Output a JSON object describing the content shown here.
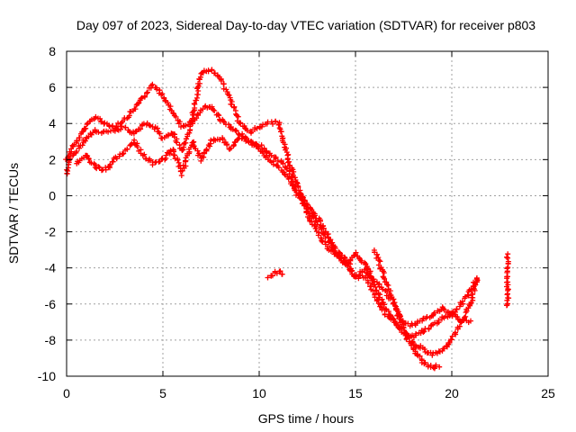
{
  "chart_data": {
    "type": "scatter",
    "title": "Day 097 of 2023, Sidereal Day-to-day VTEC variation (SDTVAR) for receiver p803",
    "xlabel": "GPS time / hours",
    "ylabel": "SDTVAR / TECUs",
    "xlim": [
      0,
      25
    ],
    "ylim": [
      -10,
      8
    ],
    "x_ticks": [
      0,
      5,
      10,
      15,
      20,
      25
    ],
    "y_ticks": [
      -10,
      -8,
      -6,
      -4,
      -2,
      0,
      2,
      4,
      6,
      8
    ],
    "grid": true,
    "marker": "+",
    "series": [
      {
        "name": "SDTVAR",
        "color": "#ff0000",
        "tracks": [
          {
            "x": [
              0.0,
              0.2,
              0.5,
              1.0,
              1.5,
              2.0,
              2.5,
              3.0,
              3.5,
              4.0,
              4.5,
              5.0,
              5.5,
              6.0,
              6.5,
              7.0,
              7.5,
              8.0,
              8.5,
              9.0,
              9.5,
              10.0,
              10.5,
              11.0,
              11.5,
              12.0,
              12.5,
              13.0,
              13.5,
              14.0,
              14.5,
              15.0,
              15.5,
              16.0,
              16.5,
              17.0,
              17.5,
              18.0,
              18.5,
              19.0,
              19.5,
              20.0,
              20.5,
              21.0,
              21.3
            ],
            "y": [
              1.2,
              2.5,
              3.0,
              3.8,
              4.4,
              4.0,
              3.8,
              4.2,
              4.8,
              5.5,
              6.1,
              5.6,
              4.6,
              3.8,
              4.2,
              6.8,
              7.0,
              6.5,
              5.3,
              4.0,
              3.5,
              3.8,
              4.0,
              4.1,
              2.0,
              0.5,
              -1.0,
              -2.0,
              -2.8,
              -3.3,
              -3.8,
              -4.5,
              -4.5,
              -5.5,
              -6.5,
              -7.0,
              -7.5,
              -8.2,
              -8.5,
              -8.8,
              -8.6,
              -8.0,
              -7.0,
              -6.0,
              -4.6
            ]
          },
          {
            "x": [
              0.0,
              0.5,
              1.0,
              1.5,
              2.0,
              2.5,
              3.0,
              3.5,
              4.0,
              4.5,
              5.0,
              5.5,
              6.0,
              6.5,
              7.0,
              7.5,
              8.0,
              8.5,
              9.0,
              9.5,
              10.0,
              10.5,
              11.0,
              11.5,
              12.0,
              12.5,
              13.0,
              13.5,
              14.0,
              14.5,
              15.0,
              15.5,
              16.0,
              16.5,
              17.0,
              17.5,
              18.0,
              18.5,
              19.0,
              19.5,
              20.0,
              20.5,
              21.0
            ],
            "y": [
              2.0,
              2.4,
              3.2,
              3.6,
              3.5,
              3.6,
              3.8,
              3.4,
              4.0,
              3.9,
              3.2,
              3.5,
              2.5,
              4.0,
              4.8,
              5.0,
              4.2,
              3.8,
              3.4,
              3.0,
              2.8,
              2.3,
              2.0,
              1.5,
              0.0,
              -0.8,
              -1.5,
              -2.3,
              -3.0,
              -3.5,
              -4.5,
              -4.0,
              -5.0,
              -6.2,
              -7.0,
              -7.6,
              -7.8,
              -7.5,
              -7.2,
              -6.8,
              -6.5,
              -6.9,
              -7.0
            ]
          },
          {
            "x": [
              0.5,
              1.0,
              1.5,
              2.0,
              2.5,
              3.0,
              3.5,
              4.0,
              4.5,
              5.0,
              5.5,
              6.0,
              6.5,
              7.0,
              7.5,
              8.0,
              8.5,
              9.0,
              9.5,
              10.0,
              10.5,
              11.0,
              11.5,
              12.0,
              12.5,
              13.0,
              13.5,
              14.0,
              14.5,
              15.0,
              15.5,
              16.0,
              16.5,
              17.0,
              17.5,
              18.0,
              18.5,
              19.0,
              19.5,
              20.0,
              20.5,
              21.0,
              21.3
            ],
            "y": [
              1.8,
              2.2,
              1.6,
              1.4,
              2.0,
              2.4,
              3.0,
              2.2,
              1.8,
              2.0,
              2.6,
              1.2,
              3.0,
              2.0,
              3.0,
              3.2,
              2.6,
              3.2,
              3.0,
              2.6,
              2.0,
              1.6,
              1.0,
              0.2,
              -0.5,
              -1.2,
              -2.0,
              -3.2,
              -3.8,
              -3.2,
              -3.8,
              -4.8,
              -5.2,
              -6.0,
              -7.0,
              -7.2,
              -6.8,
              -6.6,
              -6.2,
              -6.6,
              -6.0,
              -5.2,
              -4.6
            ]
          },
          {
            "x": [
              16.0,
              16.5,
              17.0,
              17.5,
              18.0,
              18.5,
              19.0,
              19.3
            ],
            "y": [
              -3.0,
              -4.5,
              -6.0,
              -7.5,
              -8.5,
              -9.2,
              -9.6,
              -9.4
            ]
          },
          {
            "x": [
              10.5,
              10.8,
              11.0,
              11.2
            ],
            "y": [
              -4.5,
              -4.3,
              -4.2,
              -4.3
            ]
          },
          {
            "x": [
              22.9,
              22.9,
              22.9,
              22.9,
              22.9
            ],
            "y": [
              -3.3,
              -4.0,
              -4.7,
              -5.4,
              -6.1
            ]
          }
        ]
      }
    ]
  }
}
